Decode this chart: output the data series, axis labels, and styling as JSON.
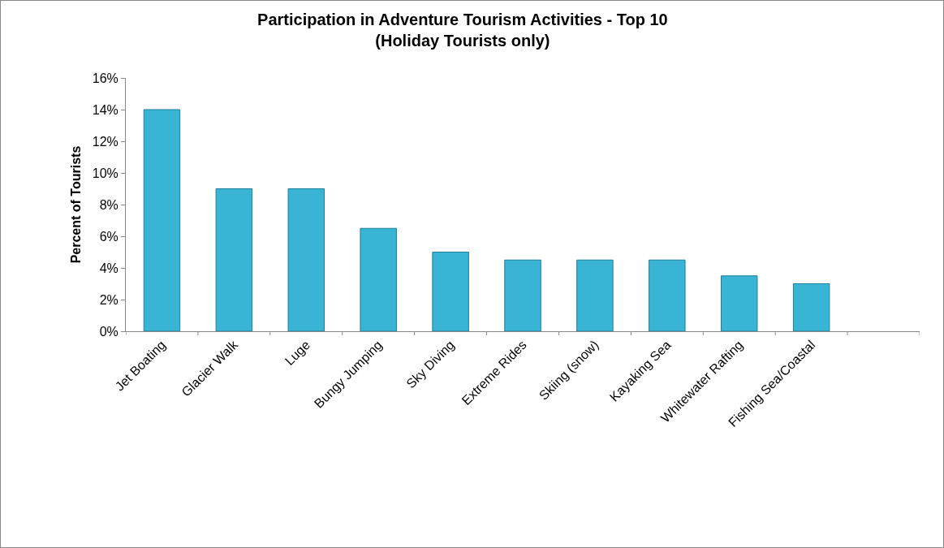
{
  "chart_data": {
    "type": "bar",
    "title": "Participation in Adventure Tourism Activities - Top 10 (Holiday Tourists only)",
    "ylabel": "Percent of Tourists",
    "categories": [
      "Jet Boating",
      "Glacier Walk",
      "Luge",
      "Bungy Jumping",
      "Sky Diving",
      "Extreme Rides",
      "Skiing (snow)",
      "Kayaking Sea",
      "Whitewater Rafting",
      "Fishing Sea/Coastal",
      null
    ],
    "values": [
      14,
      9,
      9,
      6.5,
      5,
      4.5,
      4.5,
      4.5,
      3.5,
      3,
      null
    ],
    "color": "#3ab4d4",
    "ylim": [
      0,
      16
    ],
    "yticks": [
      {
        "value": 0,
        "label": "0%"
      },
      {
        "value": 2,
        "label": "2%"
      },
      {
        "value": 4,
        "label": "4%"
      },
      {
        "value": 6,
        "label": "6%"
      },
      {
        "value": 8,
        "label": "8%"
      },
      {
        "value": 10,
        "label": "10%"
      },
      {
        "value": 12,
        "label": "12%"
      },
      {
        "value": 14,
        "label": "14%"
      },
      {
        "value": 16,
        "label": "16%"
      }
    ],
    "grid": false
  }
}
